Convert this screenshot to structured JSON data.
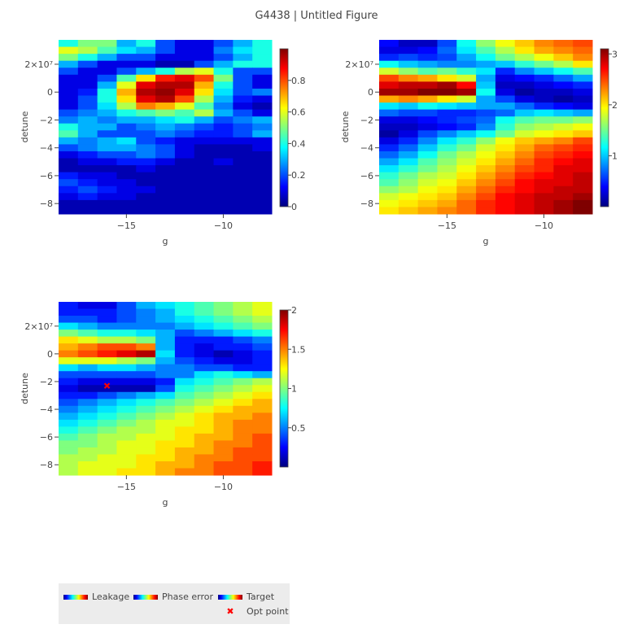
{
  "title": "G4438 | Untitled Figure",
  "colorscale": [
    "#00007f",
    "#0000ff",
    "#007fff",
    "#00ffff",
    "#7fff7f",
    "#ffff00",
    "#ff7f00",
    "#ff0000",
    "#7f0000"
  ],
  "legend": {
    "items": [
      {
        "label": "Leakage"
      },
      {
        "label": "Phase error"
      },
      {
        "label": "Target"
      },
      {
        "label": "Opt point"
      }
    ]
  },
  "chart_data": [
    {
      "type": "heatmap",
      "name": "Leakage",
      "xlabel": "g",
      "ylabel": "detune",
      "xticks": [
        {
          "v": -15,
          "label": "−15"
        },
        {
          "v": -10,
          "label": "−10"
        }
      ],
      "yticks": [
        {
          "v": 20000000,
          "label": "2×10⁷"
        },
        {
          "v": 0,
          "label": "0"
        },
        {
          "v": -20000000,
          "label": "−2"
        },
        {
          "v": -40000000,
          "label": "−4"
        },
        {
          "v": -60000000,
          "label": "−6"
        },
        {
          "v": -80000000,
          "label": "−8"
        }
      ],
      "x_range": [
        -18.5,
        -7.5
      ],
      "y_range": [
        -87500000,
        37500000
      ],
      "zmin": 0,
      "zmax": 1,
      "colorbar_ticks": [
        0,
        0.2,
        0.4,
        0.6,
        0.8
      ],
      "x": [
        -18,
        -17,
        -16,
        -15,
        -14,
        -13,
        -12,
        -11,
        -10,
        -9,
        -8
      ],
      "y_start": 35000000,
      "y_step": -5000000,
      "z": [
        [
          0.4,
          0.5,
          0.5,
          0.3,
          0.4,
          0.2,
          0.1,
          0.1,
          0.2,
          0.3,
          0.4
        ],
        [
          0.6,
          0.55,
          0.45,
          0.35,
          0.3,
          0.2,
          0.1,
          0.1,
          0.25,
          0.35,
          0.4
        ],
        [
          0.5,
          0.4,
          0.3,
          0.2,
          0.2,
          0.1,
          0.1,
          0.1,
          0.2,
          0.3,
          0.4
        ],
        [
          0.3,
          0.2,
          0.1,
          0.1,
          0.1,
          0.05,
          0.05,
          0.2,
          0.3,
          0.4,
          0.4
        ],
        [
          0.2,
          0.1,
          0.1,
          0.2,
          0.3,
          0.4,
          0.55,
          0.6,
          0.4,
          0.2,
          0.2
        ],
        [
          0.1,
          0.1,
          0.2,
          0.45,
          0.65,
          0.85,
          0.9,
          0.8,
          0.5,
          0.2,
          0.1
        ],
        [
          0.1,
          0.1,
          0.3,
          0.6,
          0.9,
          0.95,
          0.95,
          0.7,
          0.4,
          0.2,
          0.1
        ],
        [
          0.1,
          0.15,
          0.4,
          0.7,
          0.95,
          0.98,
          0.9,
          0.65,
          0.35,
          0.2,
          0.25
        ],
        [
          0.1,
          0.2,
          0.4,
          0.65,
          0.9,
          0.95,
          0.8,
          0.55,
          0.3,
          0.15,
          0.1
        ],
        [
          0.1,
          0.2,
          0.35,
          0.55,
          0.75,
          0.7,
          0.6,
          0.45,
          0.25,
          0.1,
          0.05
        ],
        [
          0.2,
          0.25,
          0.3,
          0.4,
          0.45,
          0.5,
          0.45,
          0.55,
          0.3,
          0.2,
          0.1
        ],
        [
          0.25,
          0.3,
          0.25,
          0.3,
          0.3,
          0.35,
          0.4,
          0.3,
          0.2,
          0.25,
          0.3
        ],
        [
          0.4,
          0.3,
          0.3,
          0.2,
          0.25,
          0.3,
          0.25,
          0.2,
          0.15,
          0.2,
          0.25
        ],
        [
          0.45,
          0.3,
          0.2,
          0.2,
          0.2,
          0.25,
          0.2,
          0.15,
          0.15,
          0.2,
          0.3
        ],
        [
          0.3,
          0.25,
          0.3,
          0.35,
          0.2,
          0.15,
          0.1,
          0.1,
          0.1,
          0.1,
          0.1
        ],
        [
          0.2,
          0.25,
          0.3,
          0.3,
          0.25,
          0.2,
          0.1,
          0.05,
          0.05,
          0.05,
          0.1
        ],
        [
          0.1,
          0.15,
          0.2,
          0.2,
          0.25,
          0.2,
          0.1,
          0.05,
          0.05,
          0.05,
          0.05
        ],
        [
          0.05,
          0.1,
          0.1,
          0.15,
          0.15,
          0.1,
          0.05,
          0.05,
          0.1,
          0.05,
          0.05
        ],
        [
          0.05,
          0.05,
          0.05,
          0.05,
          0.1,
          0.05,
          0.05,
          0.05,
          0.05,
          0.05,
          0.05
        ],
        [
          0.15,
          0.1,
          0.1,
          0.05,
          0.05,
          0.05,
          0.05,
          0.05,
          0.05,
          0.05,
          0.05
        ],
        [
          0.2,
          0.15,
          0.1,
          0.1,
          0.05,
          0.05,
          0.05,
          0.05,
          0.05,
          0.05,
          0.05
        ],
        [
          0.15,
          0.2,
          0.15,
          0.1,
          0.1,
          0.05,
          0.05,
          0.05,
          0.05,
          0.05,
          0.05
        ],
        [
          0.1,
          0.15,
          0.1,
          0.1,
          0.05,
          0.05,
          0.05,
          0.05,
          0.05,
          0.05,
          0.05
        ],
        [
          0.05,
          0.05,
          0.05,
          0.05,
          0.05,
          0.05,
          0.05,
          0.05,
          0.05,
          0.05,
          0.05
        ],
        [
          0.05,
          0.05,
          0.05,
          0.05,
          0.05,
          0.05,
          0.05,
          0.05,
          0.05,
          0.05,
          0.05
        ]
      ]
    },
    {
      "type": "heatmap",
      "name": "Phase error",
      "xlabel": "g",
      "ylabel": "detune",
      "xticks": [
        {
          "v": -15,
          "label": "−15"
        },
        {
          "v": -10,
          "label": "−10"
        }
      ],
      "yticks": [
        {
          "v": 20000000,
          "label": "2×10⁷"
        },
        {
          "v": 0,
          "label": "0"
        },
        {
          "v": -20000000,
          "label": "−2"
        },
        {
          "v": -40000000,
          "label": "−4"
        },
        {
          "v": -60000000,
          "label": "−6"
        },
        {
          "v": -80000000,
          "label": "−8"
        }
      ],
      "x_range": [
        -18.5,
        -7.5
      ],
      "y_range": [
        -87500000,
        37500000
      ],
      "zmin": 0,
      "zmax": 3.1,
      "colorbar_ticks": [
        1,
        2,
        3
      ],
      "x": [
        -18,
        -17,
        -16,
        -15,
        -14,
        -13,
        -12,
        -11,
        -10,
        -9,
        -8
      ],
      "y_start": 35000000,
      "y_step": -5000000,
      "z": [
        [
          0.4,
          0.2,
          0.2,
          0.6,
          1.2,
          1.6,
          1.9,
          2.1,
          2.3,
          2.4,
          2.5
        ],
        [
          0.3,
          0.3,
          0.4,
          0.7,
          1.1,
          1.4,
          1.7,
          2.0,
          2.2,
          2.3,
          2.4
        ],
        [
          0.5,
          0.6,
          0.5,
          0.6,
          0.9,
          1.2,
          1.5,
          1.7,
          1.9,
          2.1,
          2.3
        ],
        [
          1.2,
          1.0,
          0.9,
          0.8,
          0.8,
          0.9,
          1.0,
          1.3,
          1.5,
          1.7,
          2.0
        ],
        [
          1.8,
          1.6,
          1.4,
          1.5,
          1.3,
          1.1,
          0.5,
          0.8,
          1.0,
          1.2,
          1.4
        ],
        [
          2.5,
          2.3,
          2.2,
          2.0,
          1.8,
          0.9,
          0.3,
          0.4,
          0.5,
          0.7,
          0.9
        ],
        [
          2.8,
          2.9,
          2.9,
          3.0,
          2.7,
          1.0,
          0.2,
          0.2,
          0.3,
          0.4,
          0.5
        ],
        [
          3.0,
          3.0,
          3.1,
          3.1,
          3.0,
          1.2,
          0.3,
          0.1,
          0.2,
          0.2,
          0.3
        ],
        [
          2.2,
          2.3,
          2.2,
          2.0,
          1.8,
          0.9,
          0.6,
          0.3,
          0.2,
          0.1,
          0.2
        ],
        [
          1.1,
          1.0,
          1.2,
          1.1,
          1.0,
          0.9,
          0.9,
          0.7,
          0.5,
          0.4,
          0.3
        ],
        [
          0.7,
          0.6,
          0.6,
          0.5,
          0.5,
          0.6,
          0.7,
          1.0,
          1.1,
          1.0,
          0.9
        ],
        [
          0.3,
          0.3,
          0.4,
          0.5,
          0.6,
          0.7,
          1.2,
          1.4,
          1.5,
          1.5,
          1.6
        ],
        [
          0.2,
          0.2,
          0.3,
          0.4,
          0.5,
          0.8,
          1.3,
          1.6,
          1.7,
          1.8,
          1.9
        ],
        [
          0.1,
          0.3,
          0.6,
          0.8,
          1.0,
          1.2,
          1.5,
          1.8,
          1.9,
          2.0,
          2.1
        ],
        [
          0.3,
          0.5,
          0.8,
          1.1,
          1.3,
          1.6,
          1.9,
          2.1,
          2.2,
          2.3,
          2.5
        ],
        [
          0.5,
          0.7,
          1.0,
          1.3,
          1.5,
          1.8,
          2.0,
          2.2,
          2.4,
          2.5,
          2.6
        ],
        [
          0.7,
          0.9,
          1.2,
          1.5,
          1.7,
          1.9,
          2.1,
          2.3,
          2.5,
          2.6,
          2.7
        ],
        [
          0.9,
          1.1,
          1.4,
          1.6,
          1.8,
          2.0,
          2.2,
          2.4,
          2.6,
          2.7,
          2.8
        ],
        [
          1.1,
          1.3,
          1.5,
          1.7,
          1.9,
          2.1,
          2.3,
          2.5,
          2.6,
          2.8,
          2.8
        ],
        [
          1.3,
          1.5,
          1.7,
          1.8,
          2.0,
          2.2,
          2.4,
          2.6,
          2.7,
          2.8,
          2.9
        ],
        [
          1.4,
          1.6,
          1.8,
          1.9,
          2.1,
          2.3,
          2.5,
          2.7,
          2.8,
          2.8,
          2.9
        ],
        [
          1.6,
          1.7,
          1.9,
          2.0,
          2.2,
          2.4,
          2.6,
          2.7,
          2.8,
          2.9,
          2.9
        ],
        [
          1.8,
          1.9,
          2.0,
          2.1,
          2.3,
          2.5,
          2.7,
          2.8,
          2.9,
          2.9,
          3.0
        ],
        [
          1.9,
          2.0,
          2.1,
          2.2,
          2.4,
          2.6,
          2.7,
          2.8,
          2.9,
          3.0,
          3.1
        ],
        [
          2.0,
          2.1,
          2.2,
          2.3,
          2.4,
          2.6,
          2.7,
          2.8,
          2.9,
          3.0,
          3.1
        ]
      ]
    },
    {
      "type": "heatmap",
      "name": "Target",
      "xlabel": "g",
      "ylabel": "detune",
      "xticks": [
        {
          "v": -15,
          "label": "−15"
        },
        {
          "v": -10,
          "label": "−10"
        }
      ],
      "yticks": [
        {
          "v": 20000000,
          "label": "2×10⁷"
        },
        {
          "v": 0,
          "label": "0"
        },
        {
          "v": -20000000,
          "label": "−2"
        },
        {
          "v": -40000000,
          "label": "−4"
        },
        {
          "v": -60000000,
          "label": "−6"
        },
        {
          "v": -80000000,
          "label": "−8"
        }
      ],
      "x_range": [
        -18.5,
        -7.5
      ],
      "y_range": [
        -87500000,
        37500000
      ],
      "zmin": 0,
      "zmax": 2,
      "colorbar_ticks": [
        0.5,
        1,
        1.5,
        2
      ],
      "x": [
        -18,
        -17,
        -16,
        -15,
        -14,
        -13,
        -12,
        -11,
        -10,
        -9,
        -8
      ],
      "y_start": 35000000,
      "y_step": -5000000,
      "z": [
        [
          0.3,
          0.2,
          0.2,
          0.4,
          0.6,
          0.7,
          0.8,
          0.9,
          1.0,
          1.1,
          1.2
        ],
        [
          0.3,
          0.3,
          0.3,
          0.4,
          0.5,
          0.6,
          0.8,
          0.9,
          1.0,
          1.1,
          1.2
        ],
        [
          0.4,
          0.4,
          0.3,
          0.4,
          0.5,
          0.6,
          0.7,
          0.8,
          0.9,
          1.0,
          1.1
        ],
        [
          0.7,
          0.6,
          0.5,
          0.5,
          0.5,
          0.5,
          0.6,
          0.7,
          0.8,
          0.9,
          1.0
        ],
        [
          1.0,
          0.9,
          0.8,
          0.8,
          0.7,
          0.6,
          0.4,
          0.5,
          0.6,
          0.7,
          0.8
        ],
        [
          1.3,
          1.2,
          1.1,
          1.1,
          1.0,
          0.6,
          0.3,
          0.3,
          0.3,
          0.4,
          0.5
        ],
        [
          1.4,
          1.5,
          1.6,
          1.6,
          1.5,
          0.6,
          0.3,
          0.2,
          0.3,
          0.3,
          0.4
        ],
        [
          1.5,
          1.6,
          1.7,
          1.8,
          1.9,
          0.7,
          0.3,
          0.2,
          0.1,
          0.2,
          0.3
        ],
        [
          1.2,
          1.2,
          1.2,
          1.1,
          1.0,
          0.6,
          0.4,
          0.3,
          0.2,
          0.2,
          0.3
        ],
        [
          0.7,
          0.6,
          0.7,
          0.7,
          0.6,
          0.5,
          0.5,
          0.4,
          0.4,
          0.3,
          0.3
        ],
        [
          0.4,
          0.4,
          0.4,
          0.4,
          0.4,
          0.5,
          0.5,
          0.7,
          0.8,
          0.7,
          0.6
        ],
        [
          0.3,
          0.2,
          0.2,
          0.2,
          0.2,
          0.3,
          0.7,
          0.8,
          0.9,
          1.0,
          1.1
        ],
        [
          0.2,
          0.1,
          0.1,
          0.1,
          0.1,
          0.4,
          0.8,
          0.9,
          1.0,
          1.1,
          1.2
        ],
        [
          0.3,
          0.3,
          0.4,
          0.5,
          0.6,
          0.7,
          0.9,
          1.0,
          1.1,
          1.2,
          1.3
        ],
        [
          0.4,
          0.5,
          0.6,
          0.7,
          0.8,
          0.9,
          1.0,
          1.1,
          1.2,
          1.3,
          1.4
        ],
        [
          0.5,
          0.6,
          0.7,
          0.8,
          0.9,
          1.0,
          1.1,
          1.2,
          1.3,
          1.4,
          1.4
        ],
        [
          0.6,
          0.7,
          0.8,
          0.9,
          1.0,
          1.1,
          1.2,
          1.3,
          1.4,
          1.4,
          1.5
        ],
        [
          0.7,
          0.8,
          0.9,
          1.0,
          1.1,
          1.2,
          1.2,
          1.3,
          1.4,
          1.5,
          1.5
        ],
        [
          0.8,
          0.9,
          1.0,
          1.1,
          1.1,
          1.2,
          1.3,
          1.3,
          1.4,
          1.5,
          1.5
        ],
        [
          0.9,
          1.0,
          1.1,
          1.1,
          1.2,
          1.2,
          1.3,
          1.4,
          1.4,
          1.5,
          1.6
        ],
        [
          1.0,
          1.0,
          1.1,
          1.2,
          1.2,
          1.3,
          1.3,
          1.4,
          1.5,
          1.5,
          1.6
        ],
        [
          1.0,
          1.1,
          1.1,
          1.2,
          1.2,
          1.3,
          1.4,
          1.4,
          1.5,
          1.6,
          1.6
        ],
        [
          1.1,
          1.1,
          1.2,
          1.2,
          1.3,
          1.3,
          1.4,
          1.5,
          1.5,
          1.6,
          1.6
        ],
        [
          1.1,
          1.2,
          1.2,
          1.2,
          1.3,
          1.4,
          1.4,
          1.5,
          1.6,
          1.6,
          1.7
        ],
        [
          1.1,
          1.2,
          1.2,
          1.3,
          1.3,
          1.4,
          1.5,
          1.5,
          1.6,
          1.6,
          1.7
        ]
      ],
      "opt_point": {
        "x": -16,
        "y": -23000000,
        "label": "Opt point",
        "color": "#ff0000"
      }
    }
  ]
}
